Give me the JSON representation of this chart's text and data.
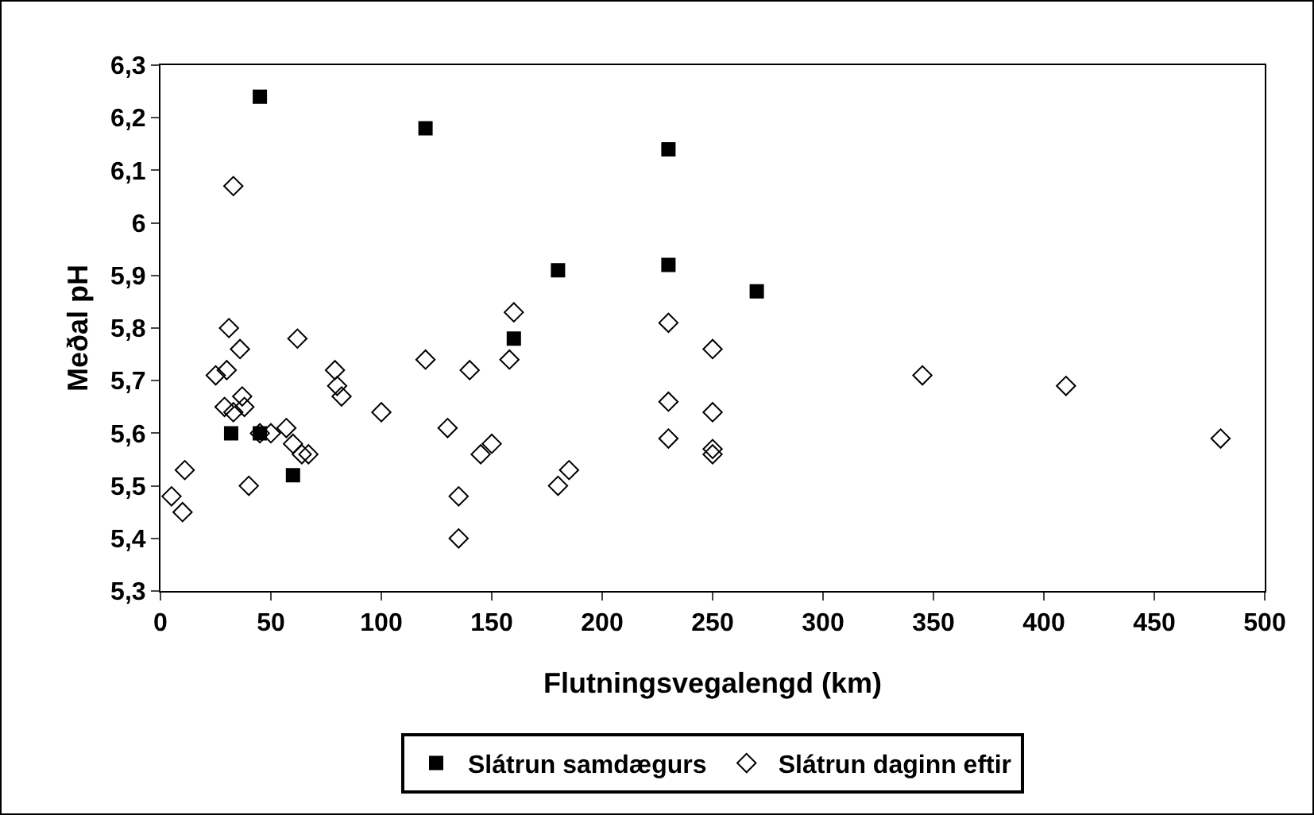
{
  "chart_data": {
    "type": "scatter",
    "xlabel": "Flutningsvegalengd (km)",
    "ylabel": "Meðal pH",
    "xlim": [
      0,
      500
    ],
    "xticks": [
      0,
      50,
      100,
      150,
      200,
      250,
      300,
      350,
      400,
      450,
      500
    ],
    "ylim": [
      5.3,
      6.3
    ],
    "yticks": [
      {
        "value": 5.3,
        "label": "5,3"
      },
      {
        "value": 5.4,
        "label": "5,4"
      },
      {
        "value": 5.5,
        "label": "5,5"
      },
      {
        "value": 5.6,
        "label": "5,6"
      },
      {
        "value": 5.7,
        "label": "5,7"
      },
      {
        "value": 5.8,
        "label": "5,8"
      },
      {
        "value": 5.9,
        "label": "5,9"
      },
      {
        "value": 6.0,
        "label": "6"
      },
      {
        "value": 6.1,
        "label": "6,1"
      },
      {
        "value": 6.2,
        "label": "6,2"
      },
      {
        "value": 6.3,
        "label": "6,3"
      }
    ],
    "grid": false,
    "legend": "bottom",
    "series": [
      {
        "name": "Slátrun samdægurs",
        "color": "#000000",
        "marker": "square",
        "x": [
          45,
          120,
          230,
          180,
          230,
          270,
          160,
          32,
          45,
          60
        ],
        "values": [
          6.24,
          6.18,
          6.14,
          5.91,
          5.92,
          5.87,
          5.78,
          5.6,
          5.6,
          5.52
        ]
      },
      {
        "name": "Slátrun daginn eftir",
        "color": "#000000",
        "marker": "diamond",
        "x": [
          5,
          10,
          11,
          33,
          31,
          36,
          25,
          30,
          29,
          33,
          37,
          38,
          40,
          45,
          50,
          57,
          60,
          62,
          64,
          67,
          79,
          80,
          82,
          100,
          120,
          130,
          135,
          135,
          140,
          145,
          150,
          158,
          160,
          180,
          185,
          230,
          230,
          230,
          250,
          250,
          250,
          250,
          345,
          410,
          480
        ],
        "values": [
          5.48,
          5.45,
          5.53,
          6.07,
          5.8,
          5.76,
          5.71,
          5.72,
          5.65,
          5.64,
          5.67,
          5.65,
          5.5,
          5.6,
          5.6,
          5.61,
          5.58,
          5.78,
          5.56,
          5.56,
          5.72,
          5.69,
          5.67,
          5.64,
          5.74,
          5.61,
          5.48,
          5.4,
          5.72,
          5.56,
          5.58,
          5.74,
          5.83,
          5.5,
          5.53,
          5.81,
          5.66,
          5.59,
          5.76,
          5.64,
          5.57,
          5.56,
          5.71,
          5.69,
          5.59
        ]
      }
    ]
  }
}
